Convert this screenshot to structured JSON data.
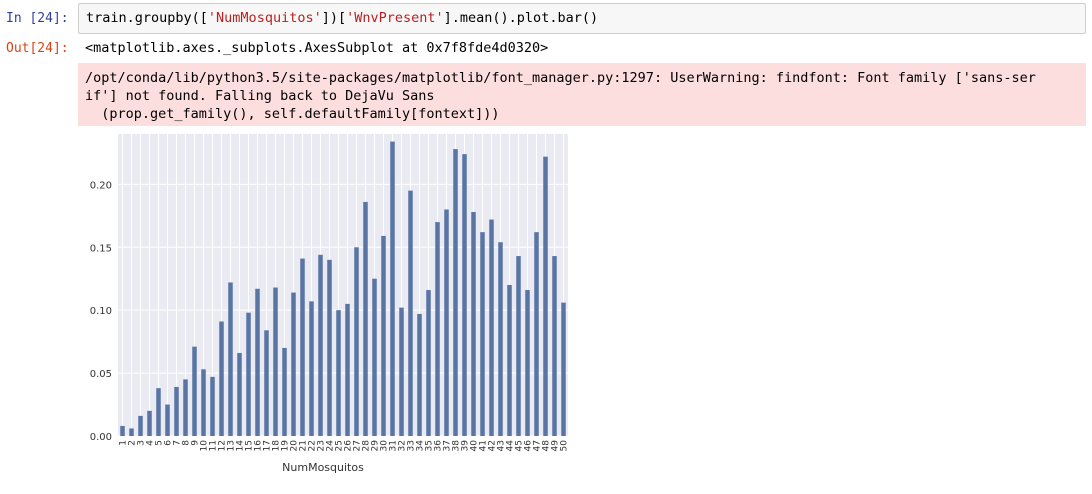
{
  "cell": {
    "in_prompt": "In [24]:",
    "out_prompt": "Out[24]:",
    "code_parts": [
      "train.groupby([",
      "'NumMosquitos'",
      "])[",
      "'WnvPresent'",
      "].mean().plot.bar()"
    ],
    "output_repr": "<matplotlib.axes._subplots.AxesSubplot at 0x7f8fde4d0320>",
    "stderr_lines": [
      "/opt/conda/lib/python3.5/site-packages/matplotlib/font_manager.py:1297: UserWarning: findfont: Font family ['sans-ser",
      "if'] not found. Falling back to DejaVu Sans",
      "  (prop.get_family(), self.defaultFamily[fontext]))"
    ]
  },
  "chart_data": {
    "type": "bar",
    "xlabel": "NumMosquitos",
    "ylabel": "",
    "categories": [
      "1",
      "2",
      "3",
      "4",
      "5",
      "6",
      "7",
      "8",
      "9",
      "10",
      "11",
      "12",
      "13",
      "14",
      "15",
      "16",
      "17",
      "18",
      "19",
      "20",
      "21",
      "22",
      "23",
      "24",
      "25",
      "26",
      "27",
      "28",
      "29",
      "30",
      "31",
      "32",
      "33",
      "34",
      "35",
      "36",
      "37",
      "38",
      "39",
      "40",
      "41",
      "42",
      "43",
      "44",
      "45",
      "46",
      "47",
      "48",
      "49",
      "50"
    ],
    "values": [
      0.008,
      0.006,
      0.016,
      0.02,
      0.038,
      0.025,
      0.039,
      0.045,
      0.071,
      0.053,
      0.047,
      0.091,
      0.122,
      0.066,
      0.098,
      0.117,
      0.084,
      0.118,
      0.07,
      0.114,
      0.141,
      0.107,
      0.144,
      0.14,
      0.1,
      0.105,
      0.15,
      0.186,
      0.125,
      0.159,
      0.234,
      0.102,
      0.195,
      0.097,
      0.116,
      0.17,
      0.18,
      0.228,
      0.224,
      0.178,
      0.162,
      0.172,
      0.154,
      0.12,
      0.143,
      0.116,
      0.162,
      0.222,
      0.143,
      0.106
    ],
    "ylim": [
      0,
      0.24
    ],
    "yticks": [
      "0.00",
      "0.05",
      "0.10",
      "0.15",
      "0.20"
    ],
    "grid": true,
    "bar_color": "#5975a4",
    "background_color": "#eaeaf2"
  }
}
